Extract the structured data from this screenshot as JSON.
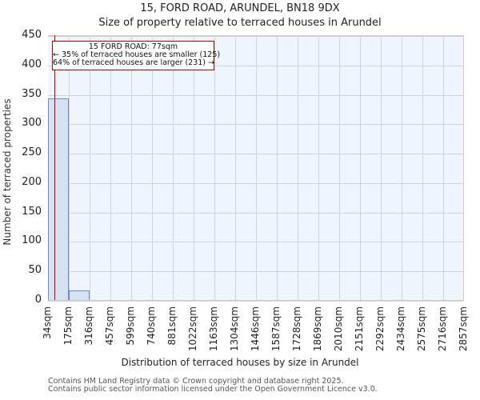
{
  "header": {
    "title": "15, FORD ROAD, ARUNDEL, BN18 9DX",
    "subtitle": "Size of property relative to terraced houses in Arundel"
  },
  "annotation": {
    "line1": "15 FORD ROAD: 77sqm",
    "line2": "← 35% of terraced houses are smaller (125)",
    "line3": "64% of terraced houses are larger (231) →",
    "marker_value_sqm": 77,
    "color": "#c00000"
  },
  "footer": {
    "line1": "Contains HM Land Registry data © Crown copyright and database right 2025.",
    "line2": "Contains public sector information licensed under the Open Government Licence v3.0."
  },
  "chart_data": {
    "type": "bar",
    "title": "15, FORD ROAD, ARUNDEL, BN18 9DX",
    "subtitle": "Size of property relative to terraced houses in Arundel",
    "xlabel": "Distribution of terraced houses by size in Arundel",
    "ylabel": "Number of terraced properties",
    "ylim": [
      0,
      450
    ],
    "yticks": [
      "0",
      "50",
      "100",
      "150",
      "200",
      "250",
      "300",
      "350",
      "400",
      "450"
    ],
    "categories": [
      "34sqm",
      "175sqm",
      "316sqm",
      "457sqm",
      "599sqm",
      "740sqm",
      "881sqm",
      "1022sqm",
      "1163sqm",
      "1304sqm",
      "1446sqm",
      "1587sqm",
      "1728sqm",
      "1869sqm",
      "2010sqm",
      "2151sqm",
      "2292sqm",
      "2434sqm",
      "2575sqm",
      "2716sqm",
      "2857sqm"
    ],
    "bins": [
      {
        "from": "34sqm",
        "to": "175sqm",
        "count": 344
      },
      {
        "from": "175sqm",
        "to": "316sqm",
        "count": 17
      },
      {
        "from": "316sqm",
        "to": "457sqm",
        "count": 0
      },
      {
        "from": "457sqm",
        "to": "599sqm",
        "count": 0
      },
      {
        "from": "599sqm",
        "to": "740sqm",
        "count": 0
      },
      {
        "from": "740sqm",
        "to": "881sqm",
        "count": 0
      },
      {
        "from": "881sqm",
        "to": "1022sqm",
        "count": 0
      },
      {
        "from": "1022sqm",
        "to": "1163sqm",
        "count": 0
      },
      {
        "from": "1163sqm",
        "to": "1304sqm",
        "count": 0
      },
      {
        "from": "1304sqm",
        "to": "1446sqm",
        "count": 0
      },
      {
        "from": "1446sqm",
        "to": "1587sqm",
        "count": 0
      },
      {
        "from": "1587sqm",
        "to": "1728sqm",
        "count": 0
      },
      {
        "from": "1728sqm",
        "to": "1869sqm",
        "count": 0
      },
      {
        "from": "1869sqm",
        "to": "2010sqm",
        "count": 0
      },
      {
        "from": "2010sqm",
        "to": "2151sqm",
        "count": 0
      },
      {
        "from": "2151sqm",
        "to": "2292sqm",
        "count": 0
      },
      {
        "from": "2292sqm",
        "to": "2434sqm",
        "count": 0
      },
      {
        "from": "2434sqm",
        "to": "2575sqm",
        "count": 0
      },
      {
        "from": "2575sqm",
        "to": "2716sqm",
        "count": 0
      },
      {
        "from": "2716sqm",
        "to": "2857sqm",
        "count": 1
      }
    ],
    "values": [
      344,
      17,
      0,
      0,
      0,
      0,
      0,
      0,
      0,
      0,
      0,
      0,
      0,
      0,
      0,
      0,
      0,
      0,
      0,
      1
    ],
    "marker": {
      "label": "15 FORD ROAD: 77sqm",
      "x": 77
    },
    "bar_color": "#d6e1f3",
    "bar_edge_color": "#5b8fd6",
    "grid": true,
    "legend": null
  }
}
